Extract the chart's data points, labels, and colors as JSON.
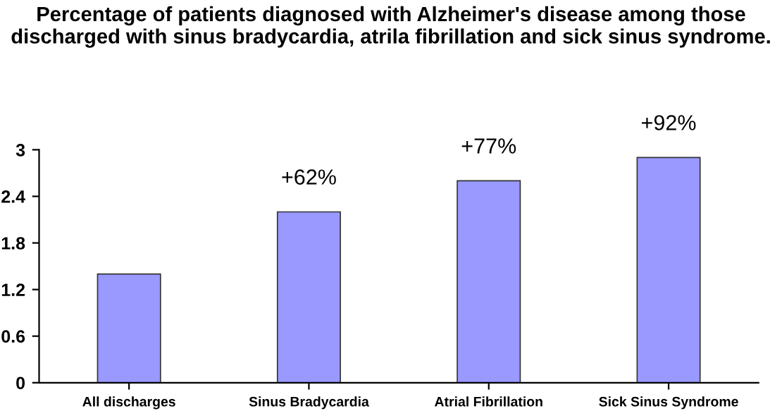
{
  "chart_data": {
    "type": "bar",
    "title": "Percentage of patients diagnosed with Alzheimer's disease among those discharged with sinus bradycardia, atrila fibrillation and sick sinus syndrome.",
    "categories": [
      "All discharges",
      "Sinus Bradycardia",
      "Atrial Fibrillation",
      "Sick Sinus Syndrome"
    ],
    "values": [
      1.4,
      2.2,
      2.6,
      2.9
    ],
    "color": "#9999ff",
    "ylim": [
      0,
      3
    ],
    "yticks": [
      0,
      0.6,
      1.2,
      1.8,
      2.4,
      3
    ],
    "grid": false,
    "annotations": [
      {
        "text": "+62%",
        "x": "Sinus Bradycardia",
        "y": 2.2
      },
      {
        "text": "+77%",
        "x": "Atrial Fibrillation",
        "y": 2.6
      },
      {
        "text": "+92%",
        "x": "Sick Sinus Syndrome",
        "y": 2.9
      }
    ]
  }
}
